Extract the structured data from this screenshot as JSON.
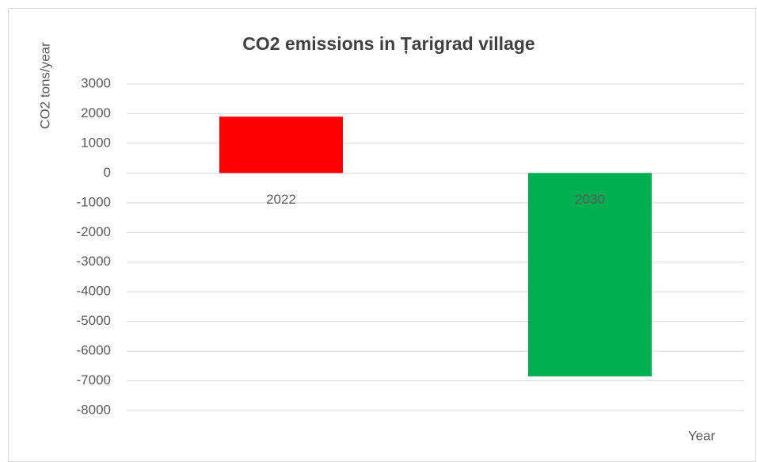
{
  "chart_data": {
    "type": "bar",
    "title": "CO2 emissions in Țarigrad village",
    "y_label": "CO2 tons/year",
    "x_label": "Year",
    "categories": [
      "2022",
      "2030"
    ],
    "values": [
      1900,
      -6850
    ],
    "colors": [
      "#ff0000",
      "#00b050"
    ],
    "ylim": [
      -8000,
      3000
    ],
    "yticks": [
      3000,
      2000,
      1000,
      0,
      -1000,
      -2000,
      -3000,
      -4000,
      -5000,
      -6000,
      -7000,
      -8000
    ],
    "grid": true
  }
}
